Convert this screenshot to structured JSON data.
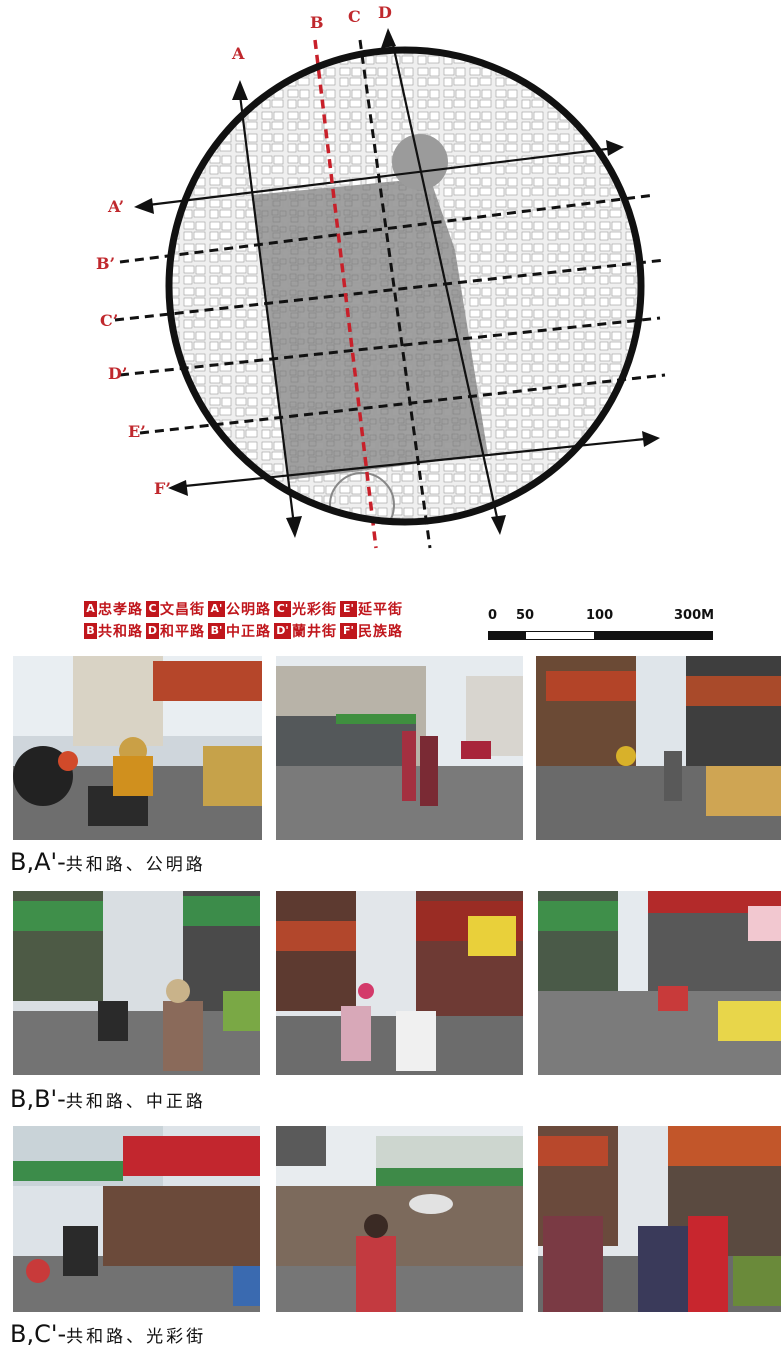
{
  "map": {
    "axis_labels": {
      "a": "A",
      "b": "B",
      "c": "C",
      "d": "D",
      "a_prime": "A’",
      "b_prime": "B’",
      "c_prime": "C’",
      "d_prime": "D’",
      "e_prime": "E’",
      "f_prime": "F’"
    },
    "colors": {
      "red_line": "#c8202a",
      "circle": "#111111",
      "district_fill": "#9a9a9a",
      "city_blocks": "#e6e6e6"
    }
  },
  "legend": {
    "rows": [
      [
        {
          "key": "A",
          "name": "忠孝路"
        },
        {
          "key": "C",
          "name": "文昌街"
        },
        {
          "key": "A'",
          "name": "公明路"
        },
        {
          "key": "C'",
          "name": "光彩街"
        },
        {
          "key": "E'",
          "name": "延平街"
        }
      ],
      [
        {
          "key": "B",
          "name": "共和路"
        },
        {
          "key": "D",
          "name": "和平路"
        },
        {
          "key": "B'",
          "name": "中正路"
        },
        {
          "key": "D'",
          "name": "蘭井街"
        },
        {
          "key": "F'",
          "name": "民族路"
        }
      ]
    ]
  },
  "scale_bar": {
    "labels": [
      "0",
      "50",
      "100",
      "300M"
    ]
  },
  "photo_rows": [
    {
      "caption_main": "B,A'-",
      "caption_sub": "共和路、公明路"
    },
    {
      "caption_main": "B,B'-",
      "caption_sub": "共和路、中正路"
    },
    {
      "caption_main": "B,C'-",
      "caption_sub": "共和路、光彩街"
    }
  ]
}
